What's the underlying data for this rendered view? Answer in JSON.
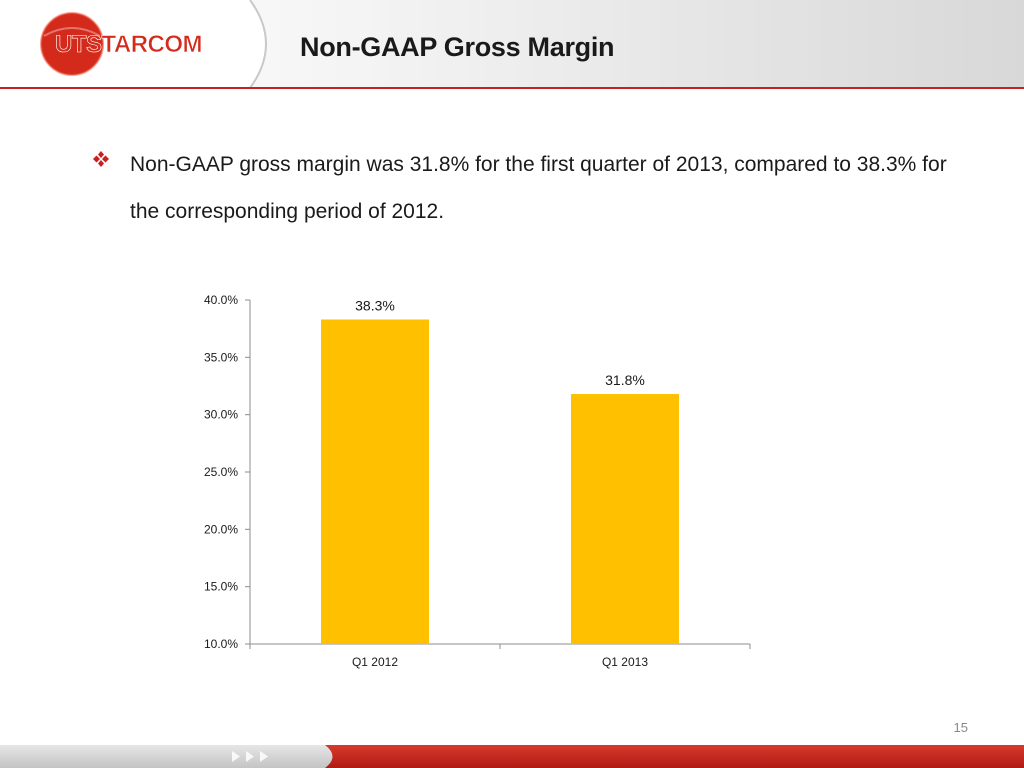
{
  "header": {
    "logo_text": "UTSTARCOM",
    "title": "Non-GAAP Gross Margin"
  },
  "bullet": {
    "text": "Non-GAAP gross margin was 31.8% for the first quarter of 2013, compared to 38.3% for the corresponding period of 2012."
  },
  "chart_data": {
    "type": "bar",
    "categories": [
      "Q1 2012",
      "Q1 2013"
    ],
    "values": [
      38.3,
      31.8
    ],
    "data_labels": [
      "38.3%",
      "31.8%"
    ],
    "y_ticks": [
      "10.0%",
      "15.0%",
      "20.0%",
      "25.0%",
      "30.0%",
      "35.0%",
      "40.0%"
    ],
    "ylim": [
      10,
      40
    ],
    "title": "",
    "xlabel": "",
    "ylabel": "",
    "grid": false,
    "bar_color": "#ffc000"
  },
  "page_number": "15",
  "colors": {
    "accent_red": "#c8201e",
    "bar": "#ffc000"
  }
}
